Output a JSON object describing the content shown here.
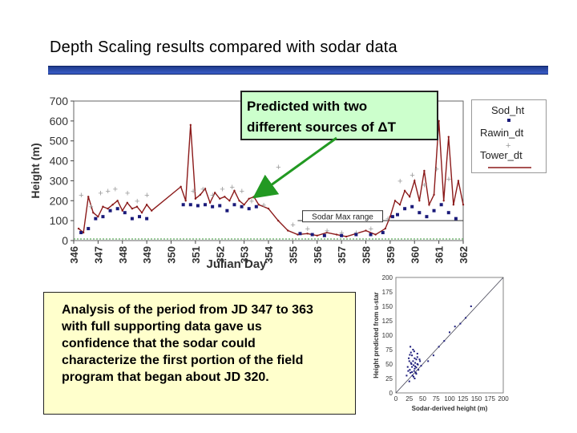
{
  "slide": {
    "title": "Depth Scaling results compared with sodar data",
    "callout_lines": [
      "Predicted with two",
      "different sources of ΔT"
    ],
    "note_lines": [
      "Analysis of the period from JD 347 to 363",
      "with full supporting data gave us",
      "confidence that the sodar could",
      "characterize the first portion of the field",
      "program that began about JD 320."
    ]
  },
  "colors": {
    "accent_bar": "#2a48b0",
    "callout_bg": "#ccffcc",
    "note_bg": "#ffffcc",
    "arrow": "#229922",
    "tower": "#8b1a1a",
    "sodar": "#1a1a7a",
    "rawin": "#999999"
  },
  "chart_data": [
    {
      "type": "line",
      "xlabel": "Julian Day",
      "ylabel": "Height (m)",
      "xlim": [
        346,
        362
      ],
      "ylim": [
        0,
        700
      ],
      "xticks": [
        346,
        347,
        348,
        349,
        350,
        351,
        352,
        353,
        354,
        355,
        356,
        357,
        358,
        359,
        360,
        361,
        362
      ],
      "yticks": [
        0,
        100,
        200,
        300,
        400,
        500,
        600,
        700
      ],
      "legend": [
        "Sod_ht",
        "Rawin_dt",
        "Tower_dt"
      ],
      "legend_position": "top-right",
      "annotations": [
        "Sodar Max range"
      ],
      "series": [
        {
          "name": "Tower_dt",
          "kind": "line",
          "x": [
            346.2,
            346.4,
            346.6,
            346.8,
            347.0,
            347.2,
            347.4,
            347.6,
            347.8,
            348.0,
            348.2,
            348.4,
            348.6,
            348.8,
            349.0,
            349.2,
            350.4,
            350.6,
            350.8,
            351.0,
            351.2,
            351.4,
            351.6,
            351.8,
            352.0,
            352.2,
            352.4,
            352.6,
            352.8,
            353.0,
            353.2,
            353.4,
            353.6,
            354.0,
            354.4,
            354.8,
            355.2,
            355.6,
            356.0,
            356.4,
            356.8,
            357.2,
            357.6,
            358.0,
            358.4,
            358.8,
            359.0,
            359.2,
            359.4,
            359.6,
            359.8,
            360.0,
            360.2,
            360.4,
            360.6,
            360.8,
            361.0,
            361.2,
            361.4,
            361.6,
            361.8,
            362.0
          ],
          "y": [
            60,
            40,
            220,
            140,
            120,
            170,
            160,
            180,
            200,
            150,
            190,
            160,
            170,
            140,
            180,
            150,
            270,
            200,
            580,
            210,
            230,
            260,
            190,
            240,
            210,
            220,
            200,
            250,
            200,
            180,
            210,
            220,
            180,
            160,
            100,
            50,
            30,
            35,
            25,
            40,
            30,
            20,
            35,
            50,
            30,
            60,
            120,
            200,
            180,
            250,
            220,
            300,
            200,
            350,
            180,
            230,
            600,
            200,
            520,
            180,
            300,
            180
          ]
        },
        {
          "name": "Rawin_dt",
          "kind": "points",
          "x": [
            346.3,
            346.7,
            347.1,
            347.4,
            347.7,
            348.2,
            348.6,
            349.0,
            350.9,
            351.3,
            351.7,
            352.1,
            352.5,
            352.9,
            353.3,
            353.8,
            354.4,
            355.0,
            355.6,
            356.4,
            357.0,
            357.6,
            358.2,
            358.9,
            359.4,
            359.9,
            360.4,
            360.9,
            361.4
          ],
          "y": [
            230,
            170,
            240,
            250,
            260,
            240,
            200,
            230,
            250,
            260,
            230,
            260,
            270,
            250,
            200,
            180,
            370,
            80,
            60,
            50,
            40,
            40,
            60,
            110,
            300,
            330,
            280,
            360,
            310
          ]
        },
        {
          "name": "Sod_ht",
          "kind": "points",
          "x": [
            346.3,
            346.6,
            346.9,
            347.2,
            347.5,
            347.8,
            348.1,
            348.4,
            348.7,
            349.0,
            350.5,
            350.8,
            351.1,
            351.4,
            351.7,
            352.0,
            352.3,
            352.6,
            352.9,
            353.2,
            353.5,
            355.3,
            355.8,
            356.3,
            357.0,
            357.6,
            358.2,
            358.7,
            359.1,
            359.3,
            359.6,
            359.9,
            360.2,
            360.5,
            360.8,
            361.1,
            361.4,
            361.7
          ],
          "y": [
            40,
            60,
            110,
            120,
            150,
            160,
            140,
            110,
            120,
            110,
            180,
            180,
            175,
            180,
            170,
            175,
            150,
            180,
            170,
            160,
            170,
            35,
            30,
            25,
            25,
            30,
            30,
            40,
            120,
            130,
            160,
            170,
            140,
            120,
            150,
            180,
            140,
            110
          ]
        }
      ]
    },
    {
      "type": "scatter",
      "xlabel": "Sodar-derived height (m)",
      "ylabel": "Height predicted from u-star",
      "xlim": [
        0,
        200
      ],
      "ylim": [
        0,
        200
      ],
      "xticks": [
        0,
        25,
        50,
        75,
        100,
        125,
        150,
        175,
        200
      ],
      "yticks": [
        0,
        25,
        50,
        75,
        100,
        125,
        150,
        175,
        200
      ],
      "series": [
        {
          "name": "",
          "x": [
            20,
            22,
            24,
            25,
            26,
            27,
            28,
            29,
            30,
            30,
            31,
            32,
            33,
            34,
            35,
            35,
            36,
            37,
            38,
            38,
            40,
            40,
            42,
            45,
            47,
            25,
            27,
            32,
            35,
            40,
            30,
            33,
            28,
            36,
            44,
            26,
            38,
            41,
            23,
            34,
            60,
            70,
            80,
            90,
            100,
            110,
            120,
            130,
            140
          ],
          "y": [
            30,
            45,
            60,
            55,
            40,
            35,
            70,
            50,
            45,
            65,
            30,
            55,
            48,
            38,
            60,
            42,
            52,
            35,
            58,
            44,
            50,
            62,
            40,
            55,
            47,
            20,
            80,
            75,
            25,
            68,
            36,
            28,
            52,
            46,
            58,
            66,
            33,
            49,
            38,
            72,
            55,
            65,
            80,
            90,
            105,
            115,
            120,
            130,
            150
          ]
        }
      ],
      "reference_line": "y = x"
    }
  ]
}
